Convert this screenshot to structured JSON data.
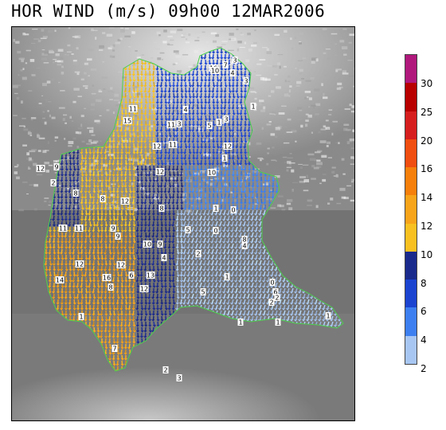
{
  "title": "HOR WIND (m/s) 09h00 12MAR2006",
  "colors": {
    "map_background_low": "#6e6e6e",
    "map_background_high": "#d8d8d8",
    "border": "#4cd04c"
  },
  "legend": {
    "ticks": [
      "30",
      "25",
      "20",
      "16",
      "14",
      "12",
      "10",
      "8",
      "6",
      "4",
      "2"
    ],
    "segments": [
      {
        "color": "#b0187c"
      },
      {
        "color": "#b80000"
      },
      {
        "color": "#d61e1e"
      },
      {
        "color": "#f04d10"
      },
      {
        "color": "#f57f0a"
      },
      {
        "color": "#f8a41a"
      },
      {
        "color": "#f8c020"
      },
      {
        "color": "#1a2a8c"
      },
      {
        "color": "#1b44d0"
      },
      {
        "color": "#3d7ff0"
      },
      {
        "color": "#a7c6f2"
      }
    ]
  },
  "stations": [
    {
      "label": "16"
    },
    {
      "label": "7"
    },
    {
      "label": "4"
    },
    {
      "label": "10"
    },
    {
      "label": "11"
    },
    {
      "label": "4"
    },
    {
      "label": "3"
    },
    {
      "label": "15"
    },
    {
      "label": "11"
    },
    {
      "label": "3"
    },
    {
      "label": "5"
    },
    {
      "label": "3"
    },
    {
      "label": "12"
    },
    {
      "label": "11"
    },
    {
      "label": "12"
    },
    {
      "label": "1"
    },
    {
      "label": "12"
    },
    {
      "label": "9"
    },
    {
      "label": "4"
    },
    {
      "label": "12"
    },
    {
      "label": "10"
    },
    {
      "label": "2"
    },
    {
      "label": "8"
    },
    {
      "label": "8"
    },
    {
      "label": "12"
    },
    {
      "label": "8"
    },
    {
      "label": "1"
    },
    {
      "label": "0"
    },
    {
      "label": "11"
    },
    {
      "label": "11"
    },
    {
      "label": "9"
    },
    {
      "label": "8"
    },
    {
      "label": "5"
    },
    {
      "label": "0"
    },
    {
      "label": "9"
    },
    {
      "label": "4"
    },
    {
      "label": "10"
    },
    {
      "label": "9"
    },
    {
      "label": "4"
    },
    {
      "label": "2"
    },
    {
      "label": "12"
    },
    {
      "label": "12"
    },
    {
      "label": "13"
    },
    {
      "label": "14"
    },
    {
      "label": "16"
    },
    {
      "label": "6"
    },
    {
      "label": "12"
    },
    {
      "label": "8"
    },
    {
      "label": "1"
    },
    {
      "label": "0"
    },
    {
      "label": "6"
    },
    {
      "label": "5"
    },
    {
      "label": "1"
    },
    {
      "label": "1"
    },
    {
      "label": "2"
    },
    {
      "label": "2"
    },
    {
      "label": "1"
    },
    {
      "label": "1"
    },
    {
      "label": "7"
    },
    {
      "label": "2"
    },
    {
      "label": "3"
    },
    {
      "label": "1"
    },
    {
      "label": "3"
    },
    {
      "label": "1"
    }
  ]
}
